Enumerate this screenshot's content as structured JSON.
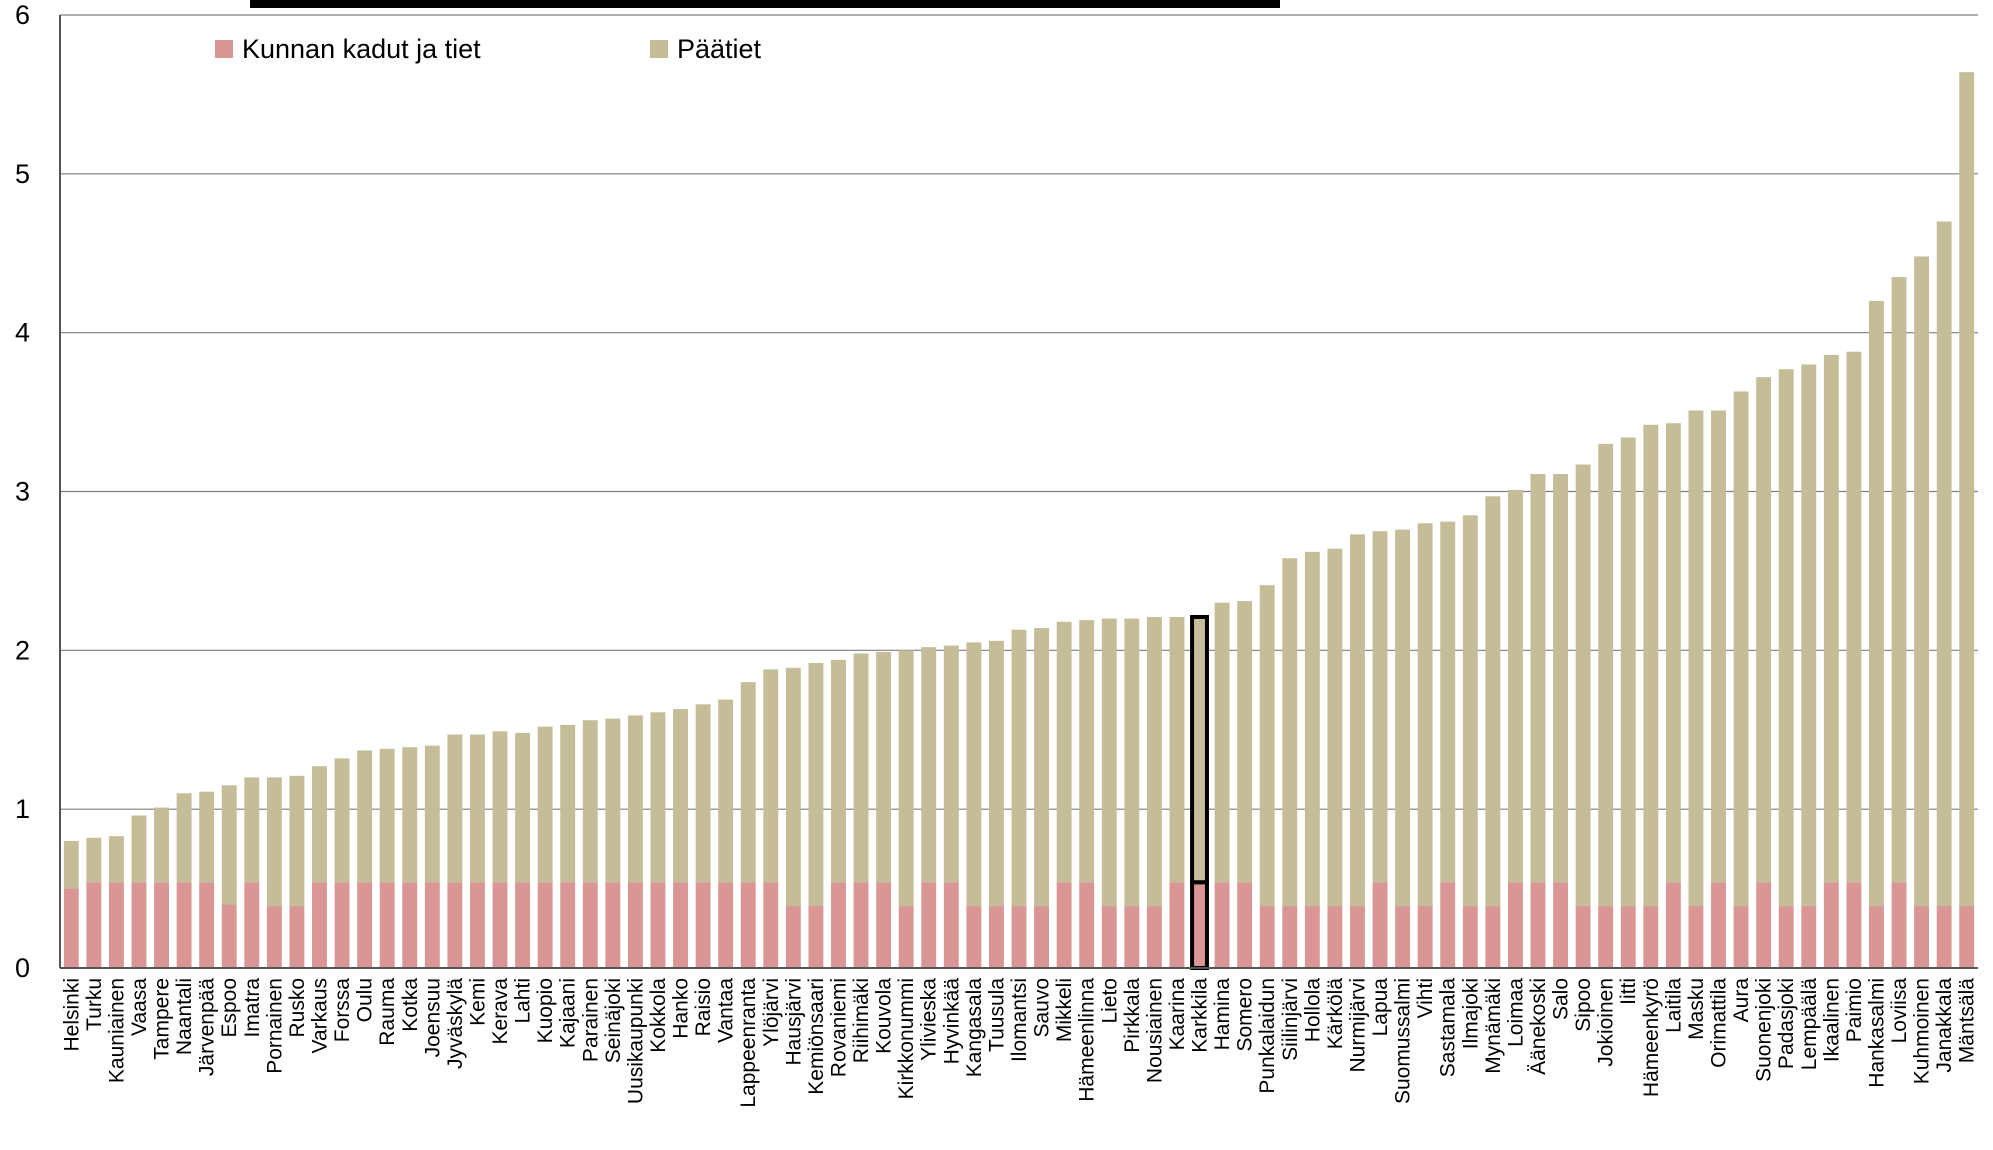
{
  "chart_data": {
    "type": "bar",
    "stacked": true,
    "title": "",
    "ylim": [
      0,
      6
    ],
    "yticks": [
      0,
      1,
      2,
      3,
      4,
      5,
      6
    ],
    "grid": true,
    "legend_position": "top-left",
    "highlighted_category": "Karkkila",
    "colors": {
      "Kunnan kadut ja tiet": "#d99694",
      "Päätiet": "#c4bd97"
    },
    "categories": [
      "Helsinki",
      "Turku",
      "Kauniainen",
      "Vaasa",
      "Tampere",
      "Naantali",
      "Järvenpää",
      "Espoo",
      "Imatra",
      "Pornainen",
      "Rusko",
      "Varkaus",
      "Forssa",
      "Oulu",
      "Rauma",
      "Kotka",
      "Joensuu",
      "Jyväskylä",
      "Kemi",
      "Kerava",
      "Lahti",
      "Kuopio",
      "Kajaani",
      "Parainen",
      "Seinäjoki",
      "Uusikaupunki",
      "Kokkola",
      "Hanko",
      "Raisio",
      "Vantaa",
      "Lappeenranta",
      "Ylöjärvi",
      "Hausjärvi",
      "Kemiönsaari",
      "Rovaniemi",
      "Riihimäki",
      "Kouvola",
      "Kirkkonummi",
      "Ylivieska",
      "Hyvinkää",
      "Kangasala",
      "Tuusula",
      "Ilomantsi",
      "Sauvo",
      "Mikkeli",
      "Hämeenlinna",
      "Lieto",
      "Pirkkala",
      "Nousiainen",
      "Kaarina",
      "Karkkila",
      "Hamina",
      "Somero",
      "Punkalaidun",
      "Siilinjärvi",
      "Hollola",
      "Kärkölä",
      "Nurmijärvi",
      "Lapua",
      "Suomussalmi",
      "Vihti",
      "Sastamala",
      "Ilmajoki",
      "Mynämäki",
      "Loimaa",
      "Äänekoski",
      "Salo",
      "Sipoo",
      "Jokioinen",
      "Iitti",
      "Hämeenkyrö",
      "Laitila",
      "Masku",
      "Orimattila",
      "Aura",
      "Suonenjoki",
      "Padasjoki",
      "Lempäälä",
      "Ikaalinen",
      "Paimio",
      "Hankasalmi",
      "Loviisa",
      "Kuhmoinen",
      "Janakkala",
      "Mäntsälä"
    ],
    "series": [
      {
        "name": "Kunnan kadut ja tiet",
        "values": [
          0.5,
          0.54,
          0.54,
          0.54,
          0.54,
          0.54,
          0.54,
          0.4,
          0.54,
          0.39,
          0.39,
          0.54,
          0.54,
          0.54,
          0.54,
          0.54,
          0.54,
          0.54,
          0.54,
          0.54,
          0.54,
          0.54,
          0.54,
          0.54,
          0.54,
          0.54,
          0.54,
          0.54,
          0.54,
          0.54,
          0.54,
          0.54,
          0.39,
          0.39,
          0.54,
          0.54,
          0.54,
          0.39,
          0.54,
          0.54,
          0.39,
          0.39,
          0.39,
          0.39,
          0.54,
          0.54,
          0.39,
          0.39,
          0.39,
          0.54,
          0.54,
          0.54,
          0.54,
          0.39,
          0.39,
          0.39,
          0.39,
          0.39,
          0.54,
          0.39,
          0.39,
          0.54,
          0.39,
          0.39,
          0.54,
          0.54,
          0.54,
          0.39,
          0.39,
          0.39,
          0.39,
          0.54,
          0.39,
          0.54,
          0.39,
          0.54,
          0.39,
          0.39,
          0.54,
          0.54,
          0.39,
          0.54,
          0.39,
          0.39,
          0.39
        ]
      },
      {
        "name": "Päätiet",
        "values": [
          0.3,
          0.28,
          0.29,
          0.42,
          0.47,
          0.56,
          0.57,
          0.75,
          0.66,
          0.81,
          0.82,
          0.73,
          0.78,
          0.83,
          0.84,
          0.85,
          0.86,
          0.93,
          0.93,
          0.95,
          0.94,
          0.98,
          0.99,
          1.02,
          1.03,
          1.05,
          1.07,
          1.09,
          1.12,
          1.15,
          1.26,
          1.34,
          1.5,
          1.53,
          1.4,
          1.44,
          1.45,
          1.61,
          1.48,
          1.49,
          1.66,
          1.67,
          1.74,
          1.75,
          1.64,
          1.65,
          1.81,
          1.81,
          1.82,
          1.67,
          1.67,
          1.76,
          1.77,
          2.02,
          2.19,
          2.23,
          2.25,
          2.34,
          2.21,
          2.37,
          2.41,
          2.27,
          2.46,
          2.58,
          2.47,
          2.57,
          2.57,
          2.78,
          2.91,
          2.95,
          3.03,
          2.89,
          3.12,
          2.97,
          3.24,
          3.18,
          3.38,
          3.41,
          3.32,
          3.34,
          3.81,
          3.81,
          4.09,
          4.31,
          5.25
        ]
      }
    ]
  }
}
